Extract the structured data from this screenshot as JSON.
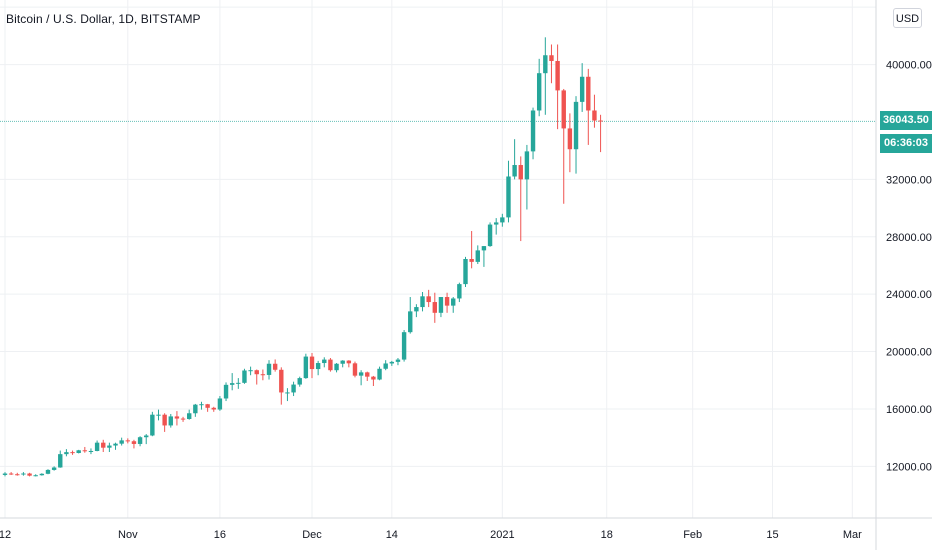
{
  "title": "Bitcoin / U.S. Dollar, 1D, BITSTAMP",
  "currency_badge": "USD",
  "last_price_label": "36043.50",
  "countdown_label": "06:36:03",
  "colors": {
    "up": "#26a69a",
    "down": "#ef5350",
    "grid": "#eef0f3",
    "axis_text": "#131722",
    "price_line": "#26a69a"
  },
  "chart_data": {
    "type": "candlestick",
    "title": "Bitcoin / U.S. Dollar, 1D, BITSTAMP",
    "xlabel": "",
    "ylabel": "",
    "ylim": [
      8400,
      44500
    ],
    "grid": true,
    "legend": "none",
    "last_price": 36043.5,
    "y_ticks": [
      12000,
      16000,
      20000,
      24000,
      28000,
      32000,
      40000
    ],
    "y_tick_labels": [
      "12000.00",
      "16000.00",
      "20000.00",
      "24000.00",
      "28000.00",
      "32000.00",
      "40000.00"
    ],
    "x_ticks": [
      {
        "day": 0,
        "label": "12"
      },
      {
        "day": 20,
        "label": "Nov"
      },
      {
        "day": 35,
        "label": "16"
      },
      {
        "day": 50,
        "label": "Dec"
      },
      {
        "day": 63,
        "label": "14"
      },
      {
        "day": 81,
        "label": "2021"
      },
      {
        "day": 98,
        "label": "18"
      },
      {
        "day": 112,
        "label": "Feb"
      },
      {
        "day": 125,
        "label": "15"
      },
      {
        "day": 138,
        "label": "Mar"
      }
    ],
    "candles": [
      {
        "day": 0,
        "date": "Oct 12",
        "open": 11400,
        "high": 11600,
        "low": 11300,
        "close": 11500
      },
      {
        "day": 1,
        "date": "Oct 13",
        "open": 11500,
        "high": 11600,
        "low": 11400,
        "close": 11450
      },
      {
        "day": 2,
        "date": "Oct 14",
        "open": 11450,
        "high": 11550,
        "low": 11350,
        "close": 11430
      },
      {
        "day": 3,
        "date": "Oct 15",
        "open": 11430,
        "high": 11600,
        "low": 11350,
        "close": 11500
      },
      {
        "day": 4,
        "date": "Oct 16",
        "open": 11500,
        "high": 11550,
        "low": 11300,
        "close": 11350
      },
      {
        "day": 5,
        "date": "Oct 17",
        "open": 11350,
        "high": 11450,
        "low": 11300,
        "close": 11380
      },
      {
        "day": 6,
        "date": "Oct 18",
        "open": 11380,
        "high": 11520,
        "low": 11350,
        "close": 11480
      },
      {
        "day": 7,
        "date": "Oct 19",
        "open": 11480,
        "high": 11800,
        "low": 11450,
        "close": 11750
      },
      {
        "day": 8,
        "date": "Oct 20",
        "open": 11750,
        "high": 12000,
        "low": 11700,
        "close": 11920
      },
      {
        "day": 9,
        "date": "Oct 21",
        "open": 11920,
        "high": 13100,
        "low": 11900,
        "close": 12850
      },
      {
        "day": 10,
        "date": "Oct 22",
        "open": 12850,
        "high": 13200,
        "low": 12700,
        "close": 12990
      },
      {
        "day": 11,
        "date": "Oct 23",
        "open": 12990,
        "high": 13100,
        "low": 12800,
        "close": 12930
      },
      {
        "day": 12,
        "date": "Oct 24",
        "open": 12930,
        "high": 13150,
        "low": 12900,
        "close": 13120
      },
      {
        "day": 13,
        "date": "Oct 25",
        "open": 13120,
        "high": 13350,
        "low": 12950,
        "close": 13050
      },
      {
        "day": 14,
        "date": "Oct 26",
        "open": 13050,
        "high": 13250,
        "low": 12850,
        "close": 13070
      },
      {
        "day": 15,
        "date": "Oct 27",
        "open": 13070,
        "high": 13800,
        "low": 13050,
        "close": 13650
      },
      {
        "day": 16,
        "date": "Oct 28",
        "open": 13650,
        "high": 13850,
        "low": 13000,
        "close": 13300
      },
      {
        "day": 17,
        "date": "Oct 29",
        "open": 13300,
        "high": 13650,
        "low": 13000,
        "close": 13450
      },
      {
        "day": 18,
        "date": "Oct 30",
        "open": 13450,
        "high": 13650,
        "low": 13150,
        "close": 13580
      },
      {
        "day": 19,
        "date": "Oct 31",
        "open": 13580,
        "high": 14000,
        "low": 13450,
        "close": 13810
      },
      {
        "day": 20,
        "date": "Nov 1",
        "open": 13810,
        "high": 13950,
        "low": 13600,
        "close": 13750
      },
      {
        "day": 21,
        "date": "Nov 2",
        "open": 13750,
        "high": 13850,
        "low": 13250,
        "close": 13560
      },
      {
        "day": 22,
        "date": "Nov 3",
        "open": 13560,
        "high": 14100,
        "low": 13400,
        "close": 14030
      },
      {
        "day": 23,
        "date": "Nov 4",
        "open": 14030,
        "high": 14250,
        "low": 13550,
        "close": 14150
      },
      {
        "day": 24,
        "date": "Nov 5",
        "open": 14150,
        "high": 15800,
        "low": 14100,
        "close": 15600
      },
      {
        "day": 25,
        "date": "Nov 6",
        "open": 15600,
        "high": 15950,
        "low": 15200,
        "close": 15600
      },
      {
        "day": 26,
        "date": "Nov 7",
        "open": 15600,
        "high": 15700,
        "low": 14400,
        "close": 14850
      },
      {
        "day": 27,
        "date": "Nov 8",
        "open": 14850,
        "high": 15650,
        "low": 14700,
        "close": 15480
      },
      {
        "day": 28,
        "date": "Nov 9",
        "open": 15480,
        "high": 15850,
        "low": 14850,
        "close": 15330
      },
      {
        "day": 29,
        "date": "Nov 10",
        "open": 15330,
        "high": 15450,
        "low": 15100,
        "close": 15300
      },
      {
        "day": 30,
        "date": "Nov 11",
        "open": 15300,
        "high": 15950,
        "low": 15250,
        "close": 15700
      },
      {
        "day": 31,
        "date": "Nov 12",
        "open": 15700,
        "high": 16350,
        "low": 15450,
        "close": 16300
      },
      {
        "day": 32,
        "date": "Nov 13",
        "open": 16300,
        "high": 16500,
        "low": 15950,
        "close": 16330
      },
      {
        "day": 33,
        "date": "Nov 14",
        "open": 16330,
        "high": 16350,
        "low": 15800,
        "close": 16080
      },
      {
        "day": 34,
        "date": "Nov 15",
        "open": 16080,
        "high": 16150,
        "low": 15800,
        "close": 15960
      },
      {
        "day": 35,
        "date": "Nov 16",
        "open": 15960,
        "high": 16900,
        "low": 15870,
        "close": 16730
      },
      {
        "day": 36,
        "date": "Nov 17",
        "open": 16730,
        "high": 17850,
        "low": 16550,
        "close": 17680
      },
      {
        "day": 37,
        "date": "Nov 18",
        "open": 17680,
        "high": 18500,
        "low": 17300,
        "close": 17800
      },
      {
        "day": 38,
        "date": "Nov 19",
        "open": 17800,
        "high": 18150,
        "low": 17400,
        "close": 17820
      },
      {
        "day": 39,
        "date": "Nov 20",
        "open": 17820,
        "high": 18800,
        "low": 17750,
        "close": 18680
      },
      {
        "day": 40,
        "date": "Nov 21",
        "open": 18680,
        "high": 18950,
        "low": 18350,
        "close": 18700
      },
      {
        "day": 41,
        "date": "Nov 22",
        "open": 18700,
        "high": 18750,
        "low": 17700,
        "close": 18420
      },
      {
        "day": 42,
        "date": "Nov 23",
        "open": 18420,
        "high": 18750,
        "low": 18000,
        "close": 18370
      },
      {
        "day": 43,
        "date": "Nov 24",
        "open": 18370,
        "high": 19400,
        "low": 18050,
        "close": 19150
      },
      {
        "day": 44,
        "date": "Nov 25",
        "open": 19150,
        "high": 19450,
        "low": 18600,
        "close": 18730
      },
      {
        "day": 45,
        "date": "Nov 26",
        "open": 18730,
        "high": 18900,
        "low": 16300,
        "close": 17150
      },
      {
        "day": 46,
        "date": "Nov 27",
        "open": 17150,
        "high": 17450,
        "low": 16550,
        "close": 17150
      },
      {
        "day": 47,
        "date": "Nov 28",
        "open": 17150,
        "high": 17900,
        "low": 16900,
        "close": 17700
      },
      {
        "day": 48,
        "date": "Nov 29",
        "open": 17700,
        "high": 18250,
        "low": 17550,
        "close": 18150
      },
      {
        "day": 49,
        "date": "Nov 30",
        "open": 18150,
        "high": 19850,
        "low": 18100,
        "close": 19650
      },
      {
        "day": 50,
        "date": "Dec 1",
        "open": 19650,
        "high": 19900,
        "low": 18150,
        "close": 18780
      },
      {
        "day": 51,
        "date": "Dec 2",
        "open": 18780,
        "high": 19350,
        "low": 18350,
        "close": 19200
      },
      {
        "day": 52,
        "date": "Dec 3",
        "open": 19200,
        "high": 19600,
        "low": 18900,
        "close": 19440
      },
      {
        "day": 53,
        "date": "Dec 4",
        "open": 19440,
        "high": 19550,
        "low": 18600,
        "close": 18700
      },
      {
        "day": 54,
        "date": "Dec 5",
        "open": 18700,
        "high": 19200,
        "low": 18550,
        "close": 19150
      },
      {
        "day": 55,
        "date": "Dec 6",
        "open": 19150,
        "high": 19400,
        "low": 18900,
        "close": 19370
      },
      {
        "day": 56,
        "date": "Dec 7",
        "open": 19370,
        "high": 19400,
        "low": 18900,
        "close": 19180
      },
      {
        "day": 57,
        "date": "Dec 8",
        "open": 19180,
        "high": 19300,
        "low": 18200,
        "close": 18320
      },
      {
        "day": 58,
        "date": "Dec 9",
        "open": 18320,
        "high": 18700,
        "low": 17650,
        "close": 18550
      },
      {
        "day": 59,
        "date": "Dec 10",
        "open": 18550,
        "high": 18600,
        "low": 17950,
        "close": 18250
      },
      {
        "day": 60,
        "date": "Dec 11",
        "open": 18250,
        "high": 18300,
        "low": 17600,
        "close": 18050
      },
      {
        "day": 61,
        "date": "Dec 12",
        "open": 18050,
        "high": 18950,
        "low": 18000,
        "close": 18800
      },
      {
        "day": 62,
        "date": "Dec 13",
        "open": 18800,
        "high": 19400,
        "low": 18700,
        "close": 19170
      },
      {
        "day": 63,
        "date": "Dec 14",
        "open": 19170,
        "high": 19350,
        "low": 19000,
        "close": 19280
      },
      {
        "day": 64,
        "date": "Dec 15",
        "open": 19280,
        "high": 19550,
        "low": 19050,
        "close": 19440
      },
      {
        "day": 65,
        "date": "Dec 16",
        "open": 19440,
        "high": 21500,
        "low": 19300,
        "close": 21350
      },
      {
        "day": 66,
        "date": "Dec 17",
        "open": 21350,
        "high": 23800,
        "low": 21250,
        "close": 22800
      },
      {
        "day": 67,
        "date": "Dec 18",
        "open": 22800,
        "high": 23300,
        "low": 22400,
        "close": 23100
      },
      {
        "day": 68,
        "date": "Dec 19",
        "open": 23100,
        "high": 24150,
        "low": 22800,
        "close": 23850
      },
      {
        "day": 69,
        "date": "Dec 20",
        "open": 23850,
        "high": 24300,
        "low": 23100,
        "close": 23450
      },
      {
        "day": 70,
        "date": "Dec 21",
        "open": 23450,
        "high": 24100,
        "low": 22000,
        "close": 22700
      },
      {
        "day": 71,
        "date": "Dec 22",
        "open": 22700,
        "high": 23800,
        "low": 22400,
        "close": 23800
      },
      {
        "day": 72,
        "date": "Dec 23",
        "open": 23800,
        "high": 24100,
        "low": 22700,
        "close": 23200
      },
      {
        "day": 73,
        "date": "Dec 24",
        "open": 23200,
        "high": 23800,
        "low": 22700,
        "close": 23700
      },
      {
        "day": 74,
        "date": "Dec 25",
        "open": 23700,
        "high": 24800,
        "low": 23450,
        "close": 24700
      },
      {
        "day": 75,
        "date": "Dec 26",
        "open": 24700,
        "high": 26600,
        "low": 24500,
        "close": 26450
      },
      {
        "day": 76,
        "date": "Dec 27",
        "open": 26450,
        "high": 28400,
        "low": 25800,
        "close": 26250
      },
      {
        "day": 77,
        "date": "Dec 28",
        "open": 26250,
        "high": 27400,
        "low": 26100,
        "close": 27050
      },
      {
        "day": 78,
        "date": "Dec 29",
        "open": 27050,
        "high": 27350,
        "low": 25900,
        "close": 27350
      },
      {
        "day": 79,
        "date": "Dec 30",
        "open": 27350,
        "high": 29000,
        "low": 27300,
        "close": 28850
      },
      {
        "day": 80,
        "date": "Dec 31",
        "open": 28850,
        "high": 29300,
        "low": 28150,
        "close": 29000
      },
      {
        "day": 81,
        "date": "Jan 1",
        "open": 29000,
        "high": 29600,
        "low": 28700,
        "close": 29350
      },
      {
        "day": 82,
        "date": "Jan 2",
        "open": 29350,
        "high": 33300,
        "low": 29000,
        "close": 32200
      },
      {
        "day": 83,
        "date": "Jan 3",
        "open": 32200,
        "high": 34800,
        "low": 32000,
        "close": 33000
      },
      {
        "day": 84,
        "date": "Jan 4",
        "open": 33000,
        "high": 33600,
        "low": 27700,
        "close": 32000
      },
      {
        "day": 85,
        "date": "Jan 5",
        "open": 32000,
        "high": 34400,
        "low": 29900,
        "close": 33950
      },
      {
        "day": 86,
        "date": "Jan 6",
        "open": 33950,
        "high": 37000,
        "low": 33400,
        "close": 36800
      },
      {
        "day": 87,
        "date": "Jan 7",
        "open": 36800,
        "high": 40400,
        "low": 36400,
        "close": 39400
      },
      {
        "day": 88,
        "date": "Jan 8",
        "open": 39400,
        "high": 41900,
        "low": 36500,
        "close": 40650
      },
      {
        "day": 89,
        "date": "Jan 9",
        "open": 40650,
        "high": 41400,
        "low": 38700,
        "close": 40250
      },
      {
        "day": 90,
        "date": "Jan 10",
        "open": 40250,
        "high": 41400,
        "low": 35500,
        "close": 38200
      },
      {
        "day": 91,
        "date": "Jan 11",
        "open": 38200,
        "high": 38300,
        "low": 30300,
        "close": 35550
      },
      {
        "day": 92,
        "date": "Jan 12",
        "open": 35550,
        "high": 36600,
        "low": 32500,
        "close": 34100
      },
      {
        "day": 93,
        "date": "Jan 13",
        "open": 34100,
        "high": 37800,
        "low": 32400,
        "close": 37400
      },
      {
        "day": 94,
        "date": "Jan 14",
        "open": 37400,
        "high": 40100,
        "low": 36700,
        "close": 39150
      },
      {
        "day": 95,
        "date": "Jan 15",
        "open": 39150,
        "high": 39700,
        "low": 34400,
        "close": 36800
      },
      {
        "day": 96,
        "date": "Jan 16",
        "open": 36800,
        "high": 37900,
        "low": 35600,
        "close": 36100
      },
      {
        "day": 97,
        "date": "Jan 17",
        "open": 36100,
        "high": 36500,
        "low": 33900,
        "close": 36043.5
      }
    ]
  }
}
